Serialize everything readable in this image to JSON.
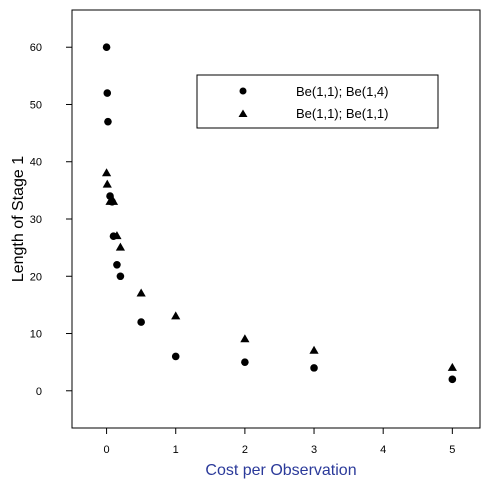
{
  "chart_data": {
    "type": "scatter",
    "xlabel": "Cost per Observation",
    "ylabel": "Length of Stage 1",
    "xlabel_color": "#2b3a9a",
    "xlim": [
      -0.5,
      5.4
    ],
    "ylim": [
      -6.5,
      66.5
    ],
    "x_ticks": [
      0,
      1,
      2,
      3,
      4,
      5
    ],
    "y_ticks": [
      0,
      10,
      20,
      30,
      40,
      50,
      60
    ],
    "grid": false,
    "legend_position": "top-right",
    "series": [
      {
        "name": "Be(1,1); Be(1,4)",
        "marker": "circle",
        "color": "#000000",
        "points": [
          {
            "x": 0.0,
            "y": 60
          },
          {
            "x": 0.01,
            "y": 52
          },
          {
            "x": 0.02,
            "y": 47
          },
          {
            "x": 0.05,
            "y": 34
          },
          {
            "x": 0.08,
            "y": 33
          },
          {
            "x": 0.1,
            "y": 27
          },
          {
            "x": 0.15,
            "y": 22
          },
          {
            "x": 0.2,
            "y": 20
          },
          {
            "x": 0.5,
            "y": 12
          },
          {
            "x": 1,
            "y": 6
          },
          {
            "x": 2,
            "y": 5
          },
          {
            "x": 3,
            "y": 4
          },
          {
            "x": 5,
            "y": 2
          }
        ]
      },
      {
        "name": "Be(1,1); Be(1,1)",
        "marker": "triangle",
        "color": "#000000",
        "points": [
          {
            "x": 0.0,
            "y": 38
          },
          {
            "x": 0.01,
            "y": 36
          },
          {
            "x": 0.05,
            "y": 33
          },
          {
            "x": 0.1,
            "y": 33
          },
          {
            "x": 0.15,
            "y": 27
          },
          {
            "x": 0.2,
            "y": 25
          },
          {
            "x": 0.5,
            "y": 17
          },
          {
            "x": 1,
            "y": 13
          },
          {
            "x": 2,
            "y": 9
          },
          {
            "x": 3,
            "y": 7
          },
          {
            "x": 5,
            "y": 4
          }
        ]
      }
    ]
  }
}
